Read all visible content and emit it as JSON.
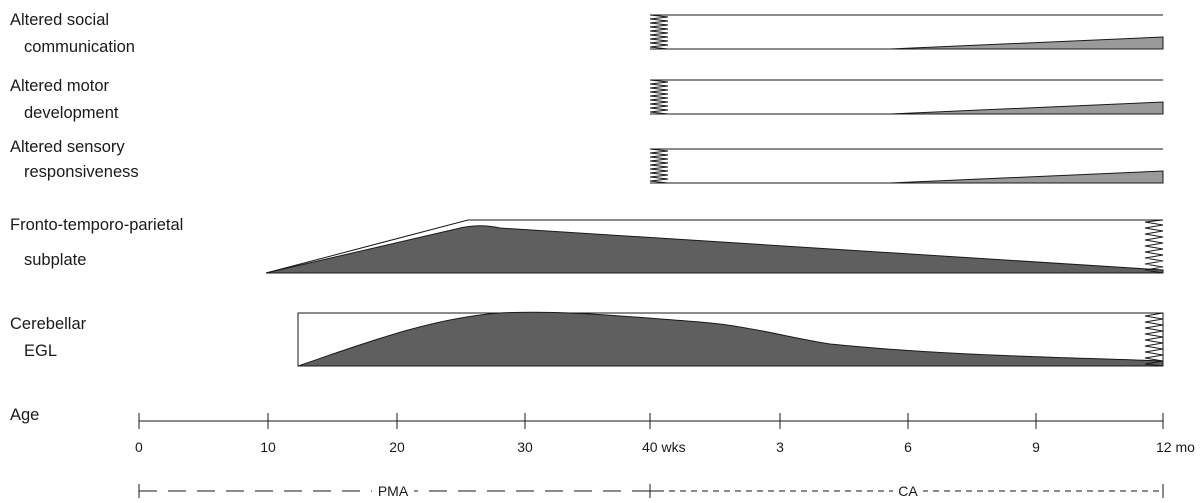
{
  "rows": [
    {
      "id": "social",
      "label_lines": [
        "Altered social",
        "communication"
      ]
    },
    {
      "id": "motor",
      "label_lines": [
        "Altered motor",
        "development"
      ]
    },
    {
      "id": "sensory",
      "label_lines": [
        "Altered sensory",
        "responsiveness"
      ]
    },
    {
      "id": "subplate",
      "label_lines": [
        "Fronto-temporo-parietal",
        "subplate"
      ]
    },
    {
      "id": "egl",
      "label_lines": [
        "Cerebellar",
        "EGL"
      ]
    }
  ],
  "axis": {
    "label": "Age",
    "ticks": [
      "0",
      "10",
      "20",
      "30",
      "40 wks",
      "3",
      "6",
      "9",
      "12 mo"
    ]
  },
  "bands": {
    "pma": "PMA",
    "ca": "CA"
  },
  "colors": {
    "fill": "#5f5f5f",
    "light_fill": "#9a9a9a",
    "line": "#1a1a1a"
  }
}
